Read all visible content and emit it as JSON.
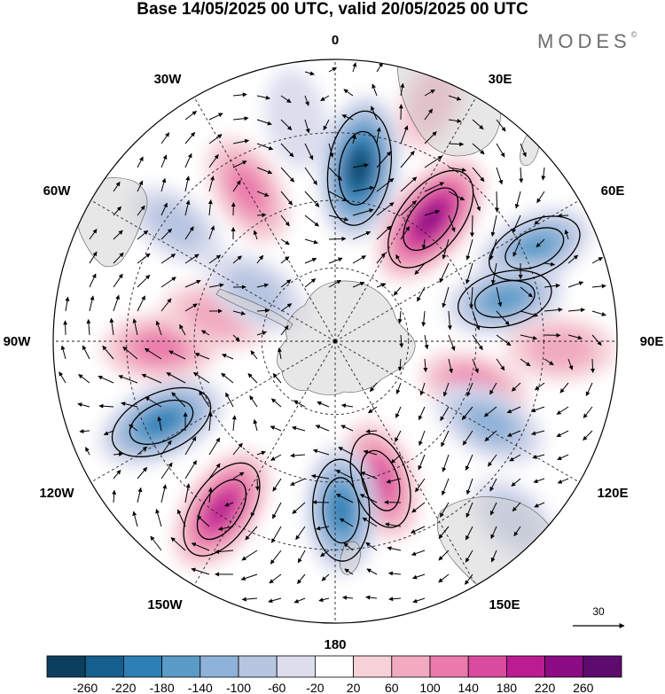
{
  "title": "Base 14/05/2025 00 UTC, valid 20/05/2025 00 UTC",
  "brand": "MODES",
  "brand_mark": "©",
  "longitude_labels": {
    "lon_0": "0",
    "lon_30e": "30E",
    "lon_60e": "60E",
    "lon_90e": "90E",
    "lon_120e": "120E",
    "lon_150e": "150E",
    "lon_180": "180",
    "lon_150w": "150W",
    "lon_120w": "120W",
    "lon_90w": "90W",
    "lon_60w": "60W",
    "lon_30w": "30W"
  },
  "reference_vector": {
    "label": "30"
  },
  "colorbar": {
    "labels": [
      "-260",
      "-220",
      "-180",
      "-140",
      "-100",
      "-60",
      "-20",
      "20",
      "60",
      "100",
      "140",
      "180",
      "220",
      "260"
    ],
    "colors": [
      "#0c3f5e",
      "#155f8f",
      "#2e7fb5",
      "#5b9bc8",
      "#8eb2d8",
      "#b7c5e1",
      "#dcdeee",
      "#ffffff",
      "#f6d2d8",
      "#f1aac0",
      "#ea7aab",
      "#d94b9e",
      "#bb1c92",
      "#8c0c86",
      "#5e0b6e"
    ]
  },
  "anomalies": [
    {
      "lon": 8,
      "r": 0.62,
      "value": -260
    },
    {
      "lon": 38,
      "r": 0.55,
      "value": 250
    },
    {
      "lon": 65,
      "r": 0.78,
      "value": -150
    },
    {
      "lon": 76,
      "r": 0.62,
      "value": -140
    },
    {
      "lon": 92,
      "r": 0.8,
      "value": 90
    },
    {
      "lon": 108,
      "r": 0.52,
      "value": 100
    },
    {
      "lon": 118,
      "r": 0.62,
      "value": -120
    },
    {
      "lon": 135,
      "r": 0.9,
      "value": -60
    },
    {
      "lon": 162,
      "r": 0.52,
      "value": 150
    },
    {
      "lon": 178,
      "r": 0.6,
      "value": -180
    },
    {
      "lon": 214,
      "r": 0.72,
      "value": 200
    },
    {
      "lon": 245,
      "r": 0.68,
      "value": -200
    },
    {
      "lon": 268,
      "r": 0.62,
      "value": 130
    },
    {
      "lon": 282,
      "r": 0.43,
      "value": 90
    },
    {
      "lon": 302,
      "r": 0.33,
      "value": -90
    },
    {
      "lon": 306,
      "r": 0.7,
      "value": -60
    },
    {
      "lon": 330,
      "r": 0.62,
      "value": 120
    },
    {
      "lon": 350,
      "r": 0.8,
      "value": -40
    },
    {
      "lon": 22,
      "r": 0.92,
      "value": 60
    }
  ]
}
